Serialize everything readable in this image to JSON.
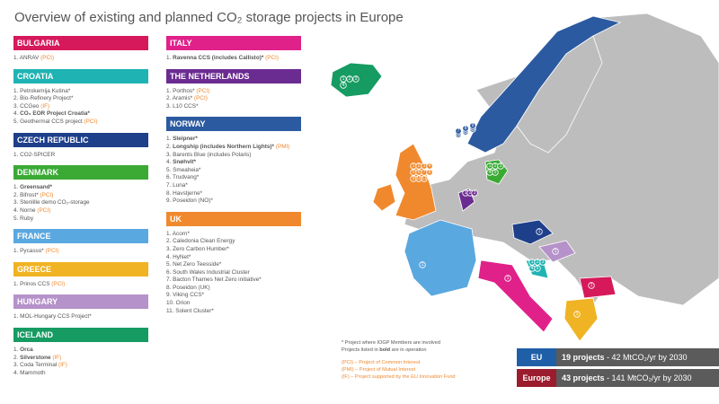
{
  "title": "Overview of existing and planned CO₂ storage projects in Europe",
  "columns": [
    [
      {
        "country": "BULGARIA",
        "color": "#d6195b",
        "items": [
          {
            "num": "1.",
            "name": "ANRAV",
            "tag": "(PCI)"
          }
        ]
      },
      {
        "country": "CROATIA",
        "color": "#20b3b3",
        "items": [
          {
            "num": "1.",
            "name": "Petrokemija Kutina*"
          },
          {
            "num": "2.",
            "name": "Bio-Refinery Project*"
          },
          {
            "num": "3.",
            "name": "CCGeo",
            "tag": "(IF)"
          },
          {
            "num": "4.",
            "name": "CO₂ EOR Project Croatia*",
            "bold": true
          },
          {
            "num": "5.",
            "name": "Geothermal CCS project",
            "tag": "(PCI)"
          }
        ]
      },
      {
        "country": "CZECH REPUBLIC",
        "color": "#1e3f8a",
        "items": [
          {
            "num": "1.",
            "name": "CO2-SPICER"
          }
        ]
      },
      {
        "country": "DENMARK",
        "color": "#3aaa35",
        "items": [
          {
            "num": "1.",
            "name": "Greensand*",
            "bold": true
          },
          {
            "num": "2.",
            "name": "Bifrost*",
            "tag": "(PCI)"
          },
          {
            "num": "3.",
            "name": "Stenlille demo CO₂-storage"
          },
          {
            "num": "4.",
            "name": "Norne",
            "tag": "(PCI)"
          },
          {
            "num": "5.",
            "name": "Ruby"
          }
        ]
      },
      {
        "country": "FRANCE",
        "color": "#5aa8e0",
        "items": [
          {
            "num": "1.",
            "name": "Pycasso*",
            "tag": "(PCI)"
          }
        ]
      },
      {
        "country": "GREECE",
        "color": "#f0b323",
        "items": [
          {
            "num": "1.",
            "name": "Prinos CCS",
            "tag": "(PCI)"
          }
        ]
      },
      {
        "country": "HUNGARY",
        "color": "#b592c9",
        "items": [
          {
            "num": "1.",
            "name": "MOL-Hungary CCS Project*"
          }
        ]
      },
      {
        "country": "ICELAND",
        "color": "#169b62",
        "items": [
          {
            "num": "1.",
            "name": "Orca",
            "bold": true
          },
          {
            "num": "2.",
            "name": "Silverstone",
            "bold": true,
            "tag": "(IF)"
          },
          {
            "num": "3.",
            "name": "Coda Terminal",
            "tag": "(IF)"
          },
          {
            "num": "4.",
            "name": "Mammoth"
          }
        ]
      }
    ],
    [
      {
        "country": "ITALY",
        "color": "#e0218a",
        "items": [
          {
            "num": "1.",
            "name": "Ravenna CCS (includes Callisto)*",
            "bold": true,
            "tag": "(PCI)"
          }
        ]
      },
      {
        "country": "THE NETHERLANDS",
        "color": "#6b2c91",
        "items": [
          {
            "num": "1.",
            "name": "Porthos*",
            "tag": "(PCI)"
          },
          {
            "num": "2.",
            "name": "Aramis*",
            "tag": "(PCI)"
          },
          {
            "num": "3.",
            "name": "L10 CCS*"
          }
        ]
      },
      {
        "country": "NORWAY",
        "color": "#2c5aa0",
        "items": [
          {
            "num": "1.",
            "name": "Sleipner*",
            "bold": true
          },
          {
            "num": "2.",
            "name": "Longship (includes Northern Lights)*",
            "bold": true,
            "tag": "(PMI)"
          },
          {
            "num": "3.",
            "name": "Barents Blue (includes Polaris)"
          },
          {
            "num": "4.",
            "name": "Snøhvit*",
            "bold": true
          },
          {
            "num": "5.",
            "name": "Smeaheia*"
          },
          {
            "num": "6.",
            "name": "Trudvang*"
          },
          {
            "num": "7.",
            "name": "Luna*"
          },
          {
            "num": "8.",
            "name": "Havstjerne*"
          },
          {
            "num": "9.",
            "name": "Poseidon (NO)*"
          }
        ]
      },
      {
        "country": "UK",
        "color": "#f0892d",
        "items": [
          {
            "num": "1.",
            "name": "Acorn*"
          },
          {
            "num": "2.",
            "name": "Caledonia Clean Energy"
          },
          {
            "num": "3.",
            "name": "Zero Carbon Humber*"
          },
          {
            "num": "4.",
            "name": "HyNet*"
          },
          {
            "num": "5.",
            "name": "Net Zero Teesside*"
          },
          {
            "num": "6.",
            "name": "South Wales Industrial Cluster"
          },
          {
            "num": "7.",
            "name": "Bacton Thames Net Zero initiative*"
          },
          {
            "num": "8.",
            "name": "Poseidon (UK)"
          },
          {
            "num": "9.",
            "name": "Viking CCS*"
          },
          {
            "num": "10.",
            "name": "Orion"
          },
          {
            "num": "11.",
            "name": "Solent Cluster*"
          }
        ]
      }
    ]
  ],
  "notes": {
    "iogp": "*  Project where IOGP Members are involved",
    "bold_a": "Projects listed in ",
    "bold_b": "bold",
    "bold_c": " are in operation",
    "pci": "(PCI) – Project of Common Interest",
    "pmi": "(PMI) – Project of Mutual Interest",
    "if": "(IF) – Project supported by the EU Innovation Fund"
  },
  "summary": [
    {
      "label": "EU",
      "color": "#1f5fa8",
      "count": "19 projects",
      "detail": " - 42 MtCO₂/yr by 2030"
    },
    {
      "label": "Europe",
      "color": "#9b1c2e",
      "count": "43 projects",
      "detail": " - 141 MtCO₂/yr by 2030"
    }
  ],
  "map": {
    "groups": [
      {
        "color": "#169b62",
        "labels": [
          "1",
          "2",
          "3",
          "4"
        ]
      },
      {
        "color": "#2c5aa0",
        "labels": [
          "1",
          "2",
          "3",
          "4",
          "5",
          "6",
          "7",
          "8",
          "9"
        ]
      },
      {
        "color": "#f0892d",
        "labels": [
          "1",
          "2",
          "3",
          "4",
          "5",
          "6",
          "7",
          "8",
          "9",
          "10",
          "11"
        ]
      },
      {
        "color": "#3aaa35",
        "labels": [
          "1",
          "2",
          "3",
          "4",
          "5"
        ]
      },
      {
        "color": "#6b2c91",
        "labels": [
          "1",
          "2",
          "3"
        ]
      },
      {
        "color": "#1e3f8a",
        "labels": [
          "1"
        ]
      },
      {
        "color": "#5aa8e0",
        "labels": [
          "1"
        ]
      },
      {
        "color": "#b592c9",
        "labels": [
          "1"
        ]
      },
      {
        "color": "#20b3b3",
        "labels": [
          "1",
          "2",
          "3",
          "4",
          "5"
        ]
      },
      {
        "color": "#e0218a",
        "labels": [
          "1"
        ]
      },
      {
        "color": "#d6195b",
        "labels": [
          "1"
        ]
      },
      {
        "color": "#f0b323",
        "labels": [
          "1"
        ]
      }
    ]
  }
}
